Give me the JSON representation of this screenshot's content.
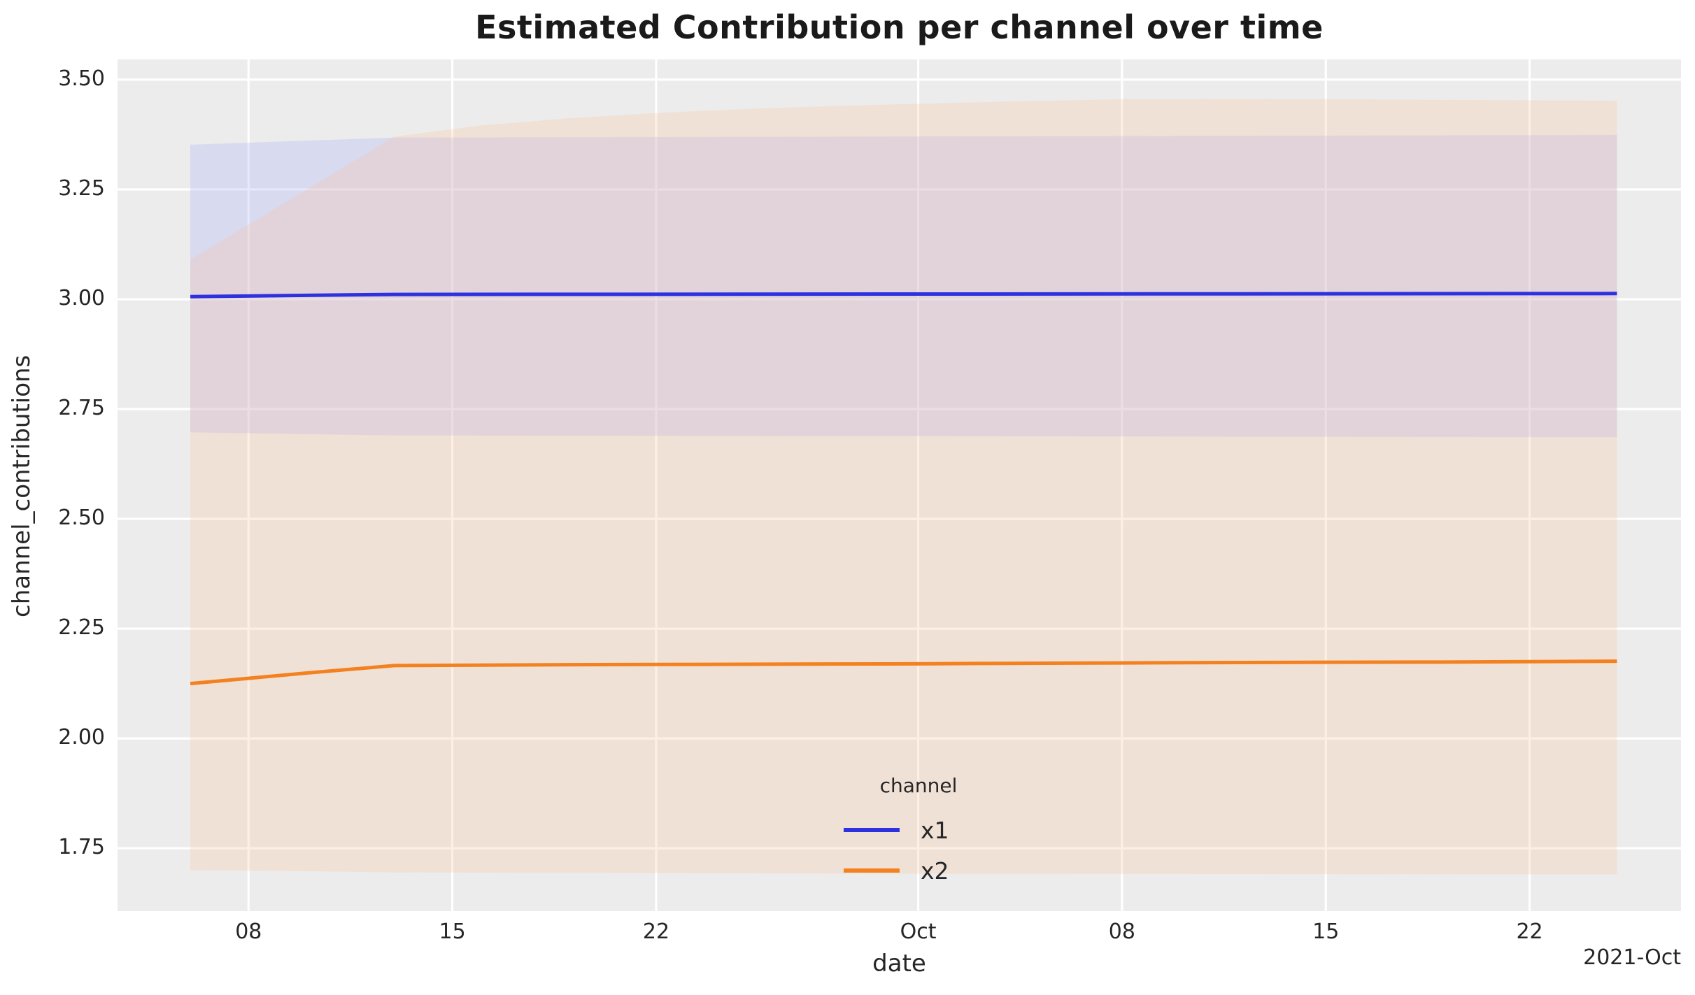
{
  "chart_data": {
    "type": "line",
    "title": "Estimated Contribution per channel over time",
    "xlabel": "date",
    "ylabel": "channel_contributions",
    "x_offset_label": "2021-Oct",
    "x_unit": "days since 2021-09-06",
    "xlim": [
      -2.5,
      51.2
    ],
    "ylim": [
      1.607,
      3.546
    ],
    "grid": true,
    "plot_background": "#ececec",
    "gridline_color": "#ffffff",
    "text_color": "#262626",
    "x_ticks": [
      {
        "x": 2,
        "label": "08"
      },
      {
        "x": 9,
        "label": "15"
      },
      {
        "x": 16,
        "label": "22"
      },
      {
        "x": 25,
        "label": "Oct"
      },
      {
        "x": 32,
        "label": "08"
      },
      {
        "x": 39,
        "label": "15"
      },
      {
        "x": 46,
        "label": "22"
      }
    ],
    "y_ticks": [
      {
        "y": 3.5,
        "label": "3.50"
      },
      {
        "y": 3.25,
        "label": "3.25"
      },
      {
        "y": 3.0,
        "label": "3.00"
      },
      {
        "y": 2.75,
        "label": "2.75"
      },
      {
        "y": 2.5,
        "label": "2.50"
      },
      {
        "y": 2.25,
        "label": "2.25"
      },
      {
        "y": 2.0,
        "label": "2.00"
      },
      {
        "y": 1.75,
        "label": "1.75"
      }
    ],
    "legend": {
      "title": "channel",
      "entries": [
        {
          "label": "x1",
          "color": "#2e31e0"
        },
        {
          "label": "x2",
          "color": "#f4811f"
        }
      ]
    },
    "series": [
      {
        "name": "x1",
        "line_color": "#2e31e0",
        "band_fill": "rgba(156,164,252,0.25)",
        "x": [
          0,
          7,
          49
        ],
        "mean": [
          3.006,
          3.011,
          3.013
        ],
        "hdi_low": [
          2.697,
          2.69,
          2.686
        ],
        "hdi_high": [
          3.352,
          3.368,
          3.374
        ]
      },
      {
        "name": "x2",
        "line_color": "#f4811f",
        "band_fill": "rgba(252,192,148,0.25)",
        "x": [
          0,
          2,
          4,
          7,
          10,
          13,
          16,
          19,
          22,
          25,
          28,
          32,
          36,
          39,
          43,
          46,
          49
        ],
        "mean": [
          2.125,
          2.137,
          2.149,
          2.166,
          2.167,
          2.168,
          2.1685,
          2.169,
          2.1695,
          2.17,
          2.171,
          2.172,
          2.173,
          2.1735,
          2.174,
          2.175,
          2.176
        ],
        "hdi_low": [
          1.7,
          1.699,
          1.698,
          1.695,
          1.6945,
          1.694,
          1.6935,
          1.693,
          1.6925,
          1.692,
          1.6918,
          1.6916,
          1.6914,
          1.6912,
          1.691,
          1.6908,
          1.6906
        ],
        "hdi_high": [
          3.09,
          3.17,
          3.25,
          3.37,
          3.396,
          3.412,
          3.424,
          3.433,
          3.44,
          3.445,
          3.45,
          3.4555,
          3.456,
          3.4555,
          3.454,
          3.453,
          3.452
        ]
      }
    ]
  }
}
